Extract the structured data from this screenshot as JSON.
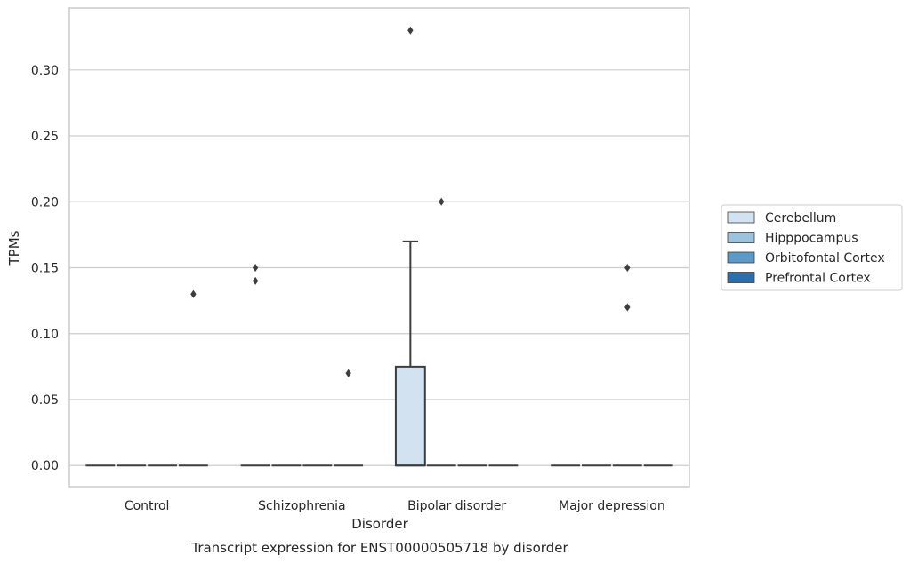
{
  "chart_data": {
    "type": "box",
    "title": "Transcript expression for ENST00000505718 by disorder",
    "xlabel": "Disorder",
    "ylabel": "TPMs",
    "categories": [
      "Control",
      "Schizophrenia",
      "Bipolar disorder",
      "Major depression"
    ],
    "yticks": [
      "0.00",
      "0.05",
      "0.10",
      "0.15",
      "0.20",
      "0.25",
      "0.30"
    ],
    "ylim": [
      -0.016,
      0.347
    ],
    "grid": true,
    "legend_position": "right",
    "series": [
      {
        "name": "Cerebellum",
        "color": "#d3e2f0",
        "boxes": [
          {
            "category": "Control",
            "min": 0,
            "q1": 0,
            "median": 0,
            "q3": 0,
            "max": 0,
            "outliers": []
          },
          {
            "category": "Schizophrenia",
            "min": 0,
            "q1": 0,
            "median": 0,
            "q3": 0,
            "max": 0,
            "outliers": [
              0.14,
              0.15
            ]
          },
          {
            "category": "Bipolar disorder",
            "min": 0,
            "q1": 0,
            "median": 0,
            "q3": 0.075,
            "max": 0.17,
            "outliers": [
              0.33
            ]
          },
          {
            "category": "Major depression",
            "min": 0,
            "q1": 0,
            "median": 0,
            "q3": 0,
            "max": 0,
            "outliers": []
          }
        ]
      },
      {
        "name": "Hipppocampus",
        "color": "#9dc3dc",
        "boxes": [
          {
            "category": "Control",
            "min": 0,
            "q1": 0,
            "median": 0,
            "q3": 0,
            "max": 0,
            "outliers": []
          },
          {
            "category": "Schizophrenia",
            "min": 0,
            "q1": 0,
            "median": 0,
            "q3": 0,
            "max": 0,
            "outliers": []
          },
          {
            "category": "Bipolar disorder",
            "min": 0,
            "q1": 0,
            "median": 0,
            "q3": 0,
            "max": 0,
            "outliers": [
              0.2
            ]
          },
          {
            "category": "Major depression",
            "min": 0,
            "q1": 0,
            "median": 0,
            "q3": 0,
            "max": 0,
            "outliers": []
          }
        ]
      },
      {
        "name": "Orbitofontal Cortex",
        "color": "#5b9ac6",
        "boxes": [
          {
            "category": "Control",
            "min": 0,
            "q1": 0,
            "median": 0,
            "q3": 0,
            "max": 0,
            "outliers": []
          },
          {
            "category": "Schizophrenia",
            "min": 0,
            "q1": 0,
            "median": 0,
            "q3": 0,
            "max": 0,
            "outliers": []
          },
          {
            "category": "Bipolar disorder",
            "min": 0,
            "q1": 0,
            "median": 0,
            "q3": 0,
            "max": 0,
            "outliers": []
          },
          {
            "category": "Major depression",
            "min": 0,
            "q1": 0,
            "median": 0,
            "q3": 0,
            "max": 0,
            "outliers": [
              0.15,
              0.12
            ]
          }
        ]
      },
      {
        "name": "Prefrontal Cortex",
        "color": "#2e6ea8",
        "boxes": [
          {
            "category": "Control",
            "min": 0,
            "q1": 0,
            "median": 0,
            "q3": 0,
            "max": 0,
            "outliers": [
              0.13
            ]
          },
          {
            "category": "Schizophrenia",
            "min": 0,
            "q1": 0,
            "median": 0,
            "q3": 0,
            "max": 0,
            "outliers": [
              0.07
            ]
          },
          {
            "category": "Bipolar disorder",
            "min": 0,
            "q1": 0,
            "median": 0,
            "q3": 0,
            "max": 0,
            "outliers": []
          },
          {
            "category": "Major depression",
            "min": 0,
            "q1": 0,
            "median": 0,
            "q3": 0,
            "max": 0,
            "outliers": []
          }
        ]
      }
    ]
  }
}
